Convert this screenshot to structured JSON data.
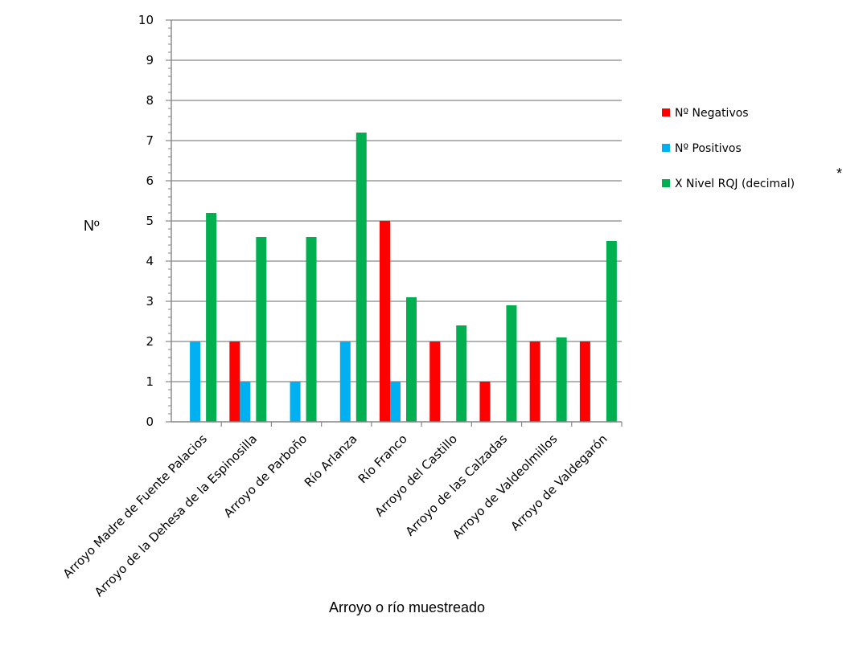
{
  "chart_data": {
    "type": "bar",
    "categories": [
      "Arroyo Madre de Fuente Palacios",
      "Arroyo de la Dehesa de la Espinosilla",
      "Arroyo de Parboño",
      "Río Arlanza",
      "Río Franco",
      "Arroyo del Castillo",
      "Arroyo de las Calzadas",
      "Arroyo de Valdeolmillos",
      "Arroyo de Valdegarón"
    ],
    "series": [
      {
        "name": "Nº Negativos",
        "color": "#ff0000",
        "values": [
          0,
          2,
          0,
          0,
          5,
          2,
          1,
          2,
          2
        ]
      },
      {
        "name": "Nº Positivos",
        "color": "#00b0f0",
        "values": [
          2,
          1,
          1,
          2,
          1,
          0,
          0,
          0,
          0
        ]
      },
      {
        "name": "X Nivel RQJ (decimal)",
        "color": "#00b050",
        "values": [
          5.2,
          4.6,
          4.6,
          7.2,
          3.1,
          2.4,
          2.9,
          2.1,
          4.5
        ]
      }
    ],
    "xlabel": "Arroyo o río muestreado",
    "ylabel": "Nº",
    "ylim": [
      0,
      10
    ],
    "yticks": [
      "0",
      "1",
      "2",
      "3",
      "4",
      "5",
      "6",
      "7",
      "8",
      "9",
      "10"
    ],
    "grid": true,
    "legend_position": "right",
    "legend_marker": "*"
  }
}
